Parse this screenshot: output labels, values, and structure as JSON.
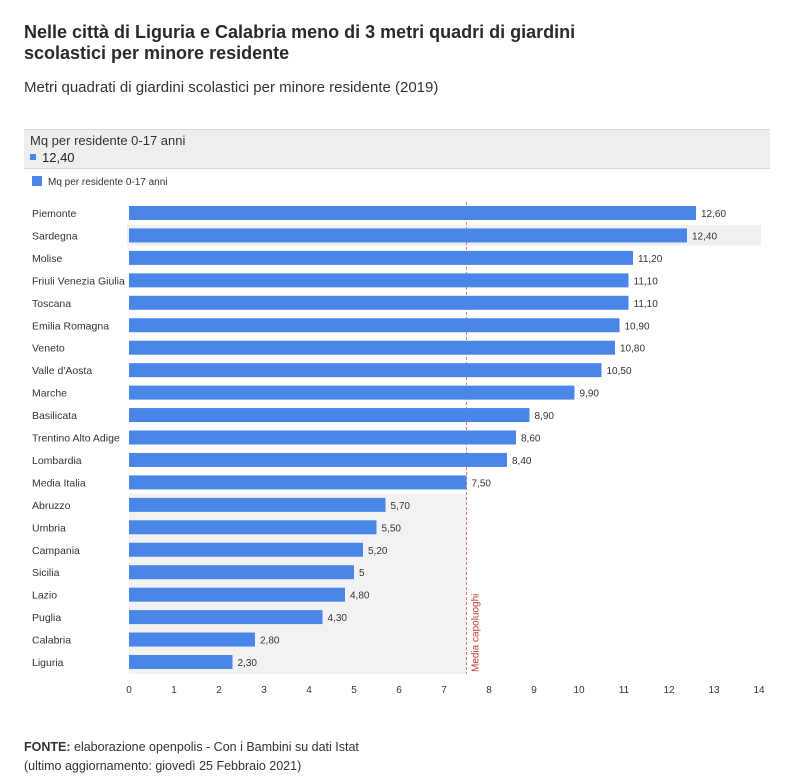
{
  "title": "Nelle città di Liguria e Calabria meno di 3 metri quadri di giardini scolastici per minore residente",
  "subtitle": "Metri quadrati di giardini scolastici per minore residente (2019)",
  "tooltip": {
    "label": "Mq per residente 0-17 anni",
    "value": "12,40"
  },
  "legend": {
    "label": "Mq per residente 0-17 anni"
  },
  "colors": {
    "bar": "#4a86e8",
    "reference_line": "#e07a7a",
    "highlight_row": "#f0f0f0",
    "shade": "#f2f2f2"
  },
  "chart_data": {
    "type": "bar",
    "orientation": "horizontal",
    "categories": [
      "Piemonte",
      "Sardegna",
      "Molise",
      "Friuli Venezia Giulia",
      "Toscana",
      "Emilia Romagna",
      "Veneto",
      "Valle d'Aosta",
      "Marche",
      "Basilicata",
      "Trentino Alto Adige",
      "Lombardia",
      "Media Italia",
      "Abruzzo",
      "Umbria",
      "Campania",
      "Sicilia",
      "Lazio",
      "Puglia",
      "Calabria",
      "Liguria"
    ],
    "series": [
      {
        "name": "Mq per residente 0-17 anni",
        "values": [
          12.6,
          12.4,
          11.2,
          11.1,
          11.1,
          10.9,
          10.8,
          10.5,
          9.9,
          8.9,
          8.6,
          8.4,
          7.5,
          5.7,
          5.5,
          5.2,
          5.0,
          4.8,
          4.3,
          2.8,
          2.3
        ],
        "labels": [
          "12,60",
          "12,40",
          "11,20",
          "11,10",
          "11,10",
          "10,90",
          "10,80",
          "10,50",
          "9,90",
          "8,90",
          "8,60",
          "8,40",
          "7,50",
          "5,70",
          "5,50",
          "5,20",
          "5",
          "4,80",
          "4,30",
          "2,80",
          "2,30"
        ]
      }
    ],
    "xlim": [
      0,
      14
    ],
    "xticks": [
      "0",
      "1",
      "2",
      "3",
      "4",
      "5",
      "6",
      "7",
      "8",
      "9",
      "10",
      "11",
      "12",
      "13",
      "14"
    ],
    "highlighted_category": "Sardegna",
    "reference_line": {
      "value": 7.5,
      "label": "Media capoluoghi"
    }
  },
  "source": {
    "prefix": "FONTE:",
    "text": " elaborazione openpolis - Con i Bambini su dati Istat",
    "updated": "(ultimo aggiornamento: giovedì 25 Febbraio 2021)"
  }
}
